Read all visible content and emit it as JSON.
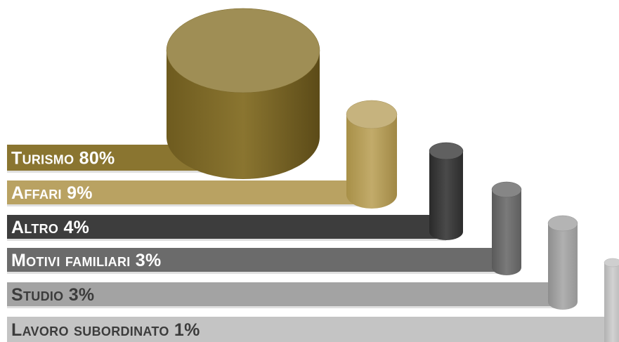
{
  "chart_data": {
    "type": "bar",
    "style": "3d-cylinder",
    "categories": [
      "Turismo",
      "Affari",
      "Altro",
      "Motivi familiari",
      "Studio",
      "Lavoro subordinato"
    ],
    "values": [
      80,
      9,
      4,
      3,
      3,
      1
    ],
    "labels": [
      "Turismo 80%",
      "Affari 9%",
      "Altro 4%",
      "Motivi familiari 3%",
      "Studio 3%",
      "Lavoro subordinato 1%"
    ],
    "colors": [
      "#8a7530",
      "#b9a262",
      "#3d3d3d",
      "#6b6b6b",
      "#a3a3a3",
      "#c4c4c4"
    ],
    "title": "",
    "legend": "none",
    "grid": false
  }
}
